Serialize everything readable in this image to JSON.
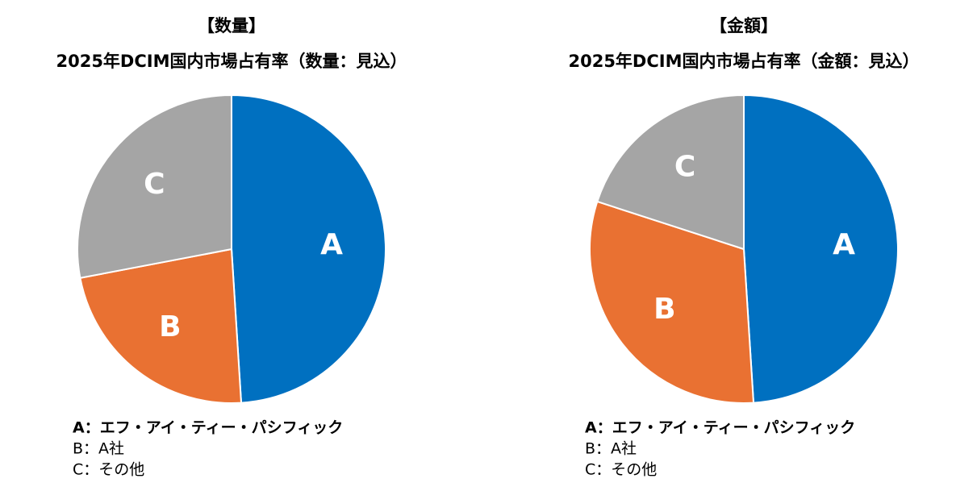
{
  "chart_data": [
    {
      "type": "pie",
      "heading": "【数量】",
      "title": "2025年DCIM国内市場占有率（数量：見込）",
      "categories": [
        "A",
        "B",
        "C"
      ],
      "values": [
        49,
        23,
        28
      ],
      "colors": [
        "#0070c0",
        "#e97132",
        "#a5a5a5"
      ],
      "legend": [
        "A：エフ・アイ・ティー・パシフィック",
        "B：A社",
        "C：その他"
      ]
    },
    {
      "type": "pie",
      "heading": "【金額】",
      "title": "2025年DCIM国内市場占有率（金額：見込）",
      "categories": [
        "A",
        "B",
        "C"
      ],
      "values": [
        49,
        31,
        20
      ],
      "colors": [
        "#0070c0",
        "#e97132",
        "#a5a5a5"
      ],
      "legend": [
        "A：エフ・アイ・ティー・パシフィック",
        "B：A社",
        "C：その他"
      ]
    }
  ]
}
